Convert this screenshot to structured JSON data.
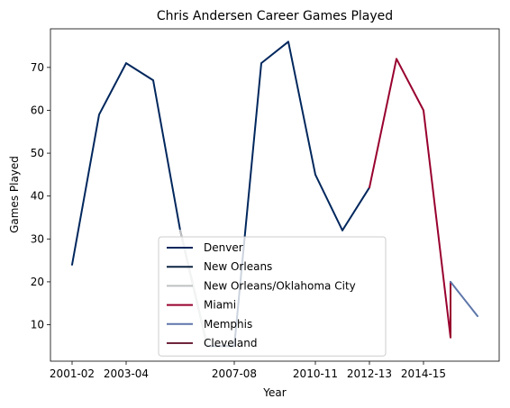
{
  "chart_data": {
    "type": "line",
    "title": "Chris Andersen Career Games Played",
    "xlabel": "Year",
    "ylabel": "Games Played",
    "x": [
      "2001-02",
      "2002-03",
      "2003-04",
      "2004-05",
      "2005-06",
      "2006-07",
      "2007-08",
      "2008-09",
      "2009-10",
      "2010-11",
      "2011-12",
      "2012-13",
      "2013-14",
      "2014-15",
      "2015-16",
      "2016-17"
    ],
    "xticks": [
      "2001-02",
      "2003-04",
      "2007-08",
      "2010-11",
      "2012-13",
      "2014-15"
    ],
    "yticks": [
      10,
      20,
      30,
      40,
      50,
      60,
      70
    ],
    "ylim": [
      1.5,
      79
    ],
    "grid": false,
    "legend_position": "lower center",
    "series": [
      {
        "name": "Denver",
        "color": "#00275D",
        "points": [
          [
            "2001-02",
            24
          ],
          [
            "2002-03",
            59
          ],
          [
            "2003-04",
            71
          ],
          [
            "2004-05",
            67
          ],
          [
            "2005-06",
            32
          ]
        ]
      },
      {
        "name": "New Orleans",
        "color": "#0C2340",
        "points": [
          [
            "2005-06",
            32
          ],
          [
            "2006-07",
            5
          ]
        ]
      },
      {
        "name": "New Orleans/Oklahoma City",
        "color": "#BEC0C2",
        "points": [
          [
            "2005-06",
            32
          ],
          [
            "2006-07",
            5
          ]
        ]
      },
      {
        "name": "Denver",
        "color": "#00275D",
        "legend": false,
        "points": [
          [
            "2006-07",
            5
          ],
          [
            "2007-08",
            5
          ],
          [
            "2008-09",
            71
          ],
          [
            "2009-10",
            76
          ],
          [
            "2010-11",
            45
          ],
          [
            "2011-12",
            32
          ],
          [
            "2012-13",
            42
          ]
        ]
      },
      {
        "name": "Miami",
        "color": "#98002E",
        "points": [
          [
            "2012-13",
            42
          ],
          [
            "2013-14",
            72
          ],
          [
            "2014-15",
            60
          ],
          [
            "2015-16",
            7
          ],
          [
            "2015-16",
            20
          ]
        ]
      },
      {
        "name": "Memphis",
        "color": "#5D76A9",
        "points": [
          [
            "2015-16",
            20
          ],
          [
            "2016-17",
            12
          ]
        ]
      },
      {
        "name": "Cleveland",
        "color": "#6F263D",
        "points": [
          [
            "2016-17",
            12
          ]
        ]
      }
    ]
  }
}
